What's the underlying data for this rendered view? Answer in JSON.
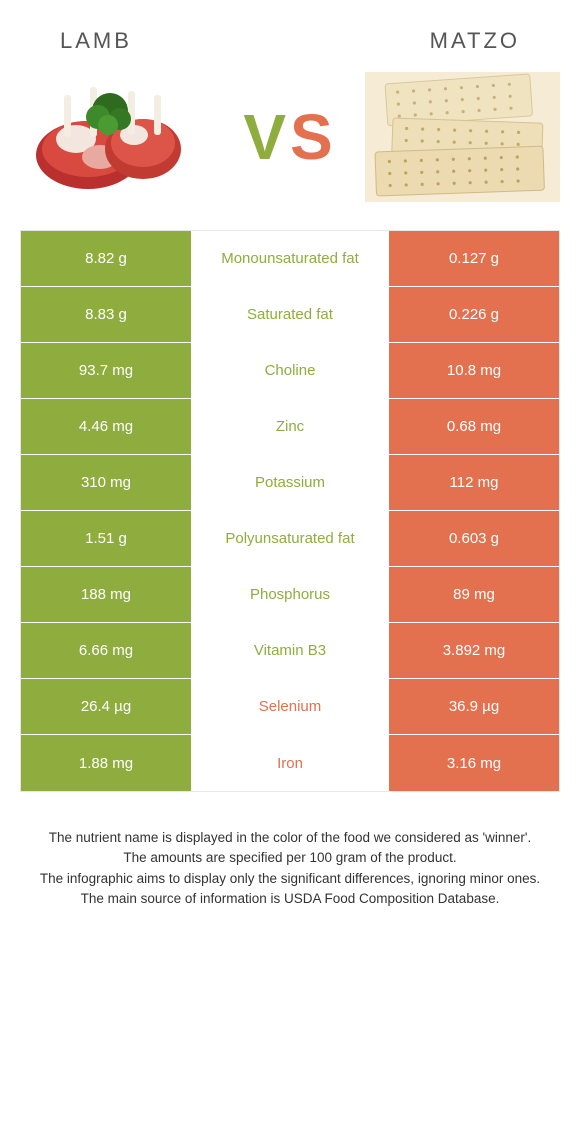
{
  "colors": {
    "green": "#8fad3e",
    "orange": "#e3704e",
    "mid_bg": "#ffffff",
    "text_white": "#ffffff",
    "border": "#e6e6e6",
    "title": "#555555",
    "footer": "#333333"
  },
  "header": {
    "left_title": "Lamb",
    "right_title": "Matzo"
  },
  "vs": {
    "v": "V",
    "s": "S"
  },
  "rows": [
    {
      "left": "8.82 g",
      "label": "Monounsaturated fat",
      "right": "0.127 g",
      "winner": "left"
    },
    {
      "left": "8.83 g",
      "label": "Saturated fat",
      "right": "0.226 g",
      "winner": "left"
    },
    {
      "left": "93.7 mg",
      "label": "Choline",
      "right": "10.8 mg",
      "winner": "left"
    },
    {
      "left": "4.46 mg",
      "label": "Zinc",
      "right": "0.68 mg",
      "winner": "left"
    },
    {
      "left": "310 mg",
      "label": "Potassium",
      "right": "112 mg",
      "winner": "left"
    },
    {
      "left": "1.51 g",
      "label": "Polyunsaturated fat",
      "right": "0.603 g",
      "winner": "left"
    },
    {
      "left": "188 mg",
      "label": "Phosphorus",
      "right": "89 mg",
      "winner": "left"
    },
    {
      "left": "6.66 mg",
      "label": "Vitamin B3",
      "right": "3.892 mg",
      "winner": "left"
    },
    {
      "left": "26.4 µg",
      "label": "Selenium",
      "right": "36.9 µg",
      "winner": "right"
    },
    {
      "left": "1.88 mg",
      "label": "Iron",
      "right": "3.16 mg",
      "winner": "right"
    }
  ],
  "footer": {
    "line1": "The nutrient name is displayed in the color of the food we considered as 'winner'.",
    "line2": "The amounts are specified per 100 gram of the product.",
    "line3": "The infographic aims to display only the significant differences, ignoring minor ones.",
    "line4": "The main source of information is USDA Food Composition Database."
  }
}
